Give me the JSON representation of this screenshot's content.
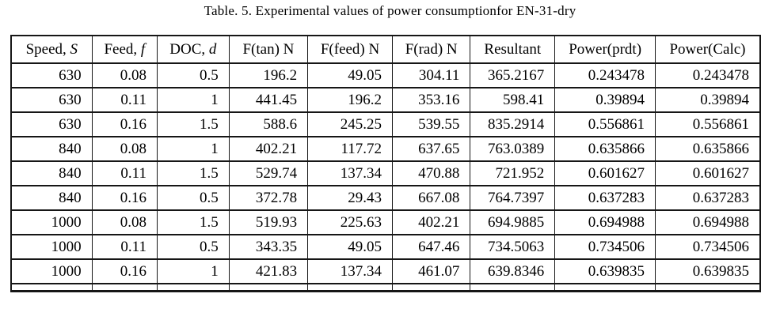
{
  "page": {
    "background": "#ffffff",
    "text_color": "#000000",
    "border_color": "#161616"
  },
  "title": "Table. 5. Experimental values of power consumptionfor EN-31-dry",
  "table": {
    "columns": [
      {
        "text": "Speed, ",
        "var": "S"
      },
      {
        "text": "Feed, ",
        "var": "f"
      },
      {
        "text": "DOC, ",
        "var": "d"
      },
      {
        "text": "F(tan) N",
        "var": ""
      },
      {
        "text": "F(feed) N",
        "var": ""
      },
      {
        "text": "F(rad) N",
        "var": ""
      },
      {
        "text": "Resultant",
        "var": ""
      },
      {
        "text": "Power(prdt)",
        "var": ""
      },
      {
        "text": "Power(Calc)",
        "var": ""
      }
    ],
    "rows": [
      [
        "630",
        "0.08",
        "0.5",
        "196.2",
        "49.05",
        "304.11",
        "365.2167",
        "0.243478",
        "0.243478"
      ],
      [
        "630",
        "0.11",
        "1",
        "441.45",
        "196.2",
        "353.16",
        "598.41",
        "0.39894",
        "0.39894"
      ],
      [
        "630",
        "0.16",
        "1.5",
        "588.6",
        "245.25",
        "539.55",
        "835.2914",
        "0.556861",
        "0.556861"
      ],
      [
        "840",
        "0.08",
        "1",
        "402.21",
        "117.72",
        "637.65",
        "763.0389",
        "0.635866",
        "0.635866"
      ],
      [
        "840",
        "0.11",
        "1.5",
        "529.74",
        "137.34",
        "470.88",
        "721.952",
        "0.601627",
        "0.601627"
      ],
      [
        "840",
        "0.16",
        "0.5",
        "372.78",
        "29.43",
        "667.08",
        "764.7397",
        "0.637283",
        "0.637283"
      ],
      [
        "1000",
        "0.08",
        "1.5",
        "519.93",
        "225.63",
        "402.21",
        "694.9885",
        "0.694988",
        "0.694988"
      ],
      [
        "1000",
        "0.11",
        "0.5",
        "343.35",
        "49.05",
        "647.46",
        "734.5063",
        "0.734506",
        "0.734506"
      ],
      [
        "1000",
        "0.16",
        "1",
        "421.83",
        "137.34",
        "461.07",
        "639.8346",
        "0.639835",
        "0.639835"
      ]
    ],
    "has_trailing_empty_row": true
  },
  "chart_data": {
    "type": "table",
    "title": "Table. 5. Experimental values of power consumptionfor EN-31-dry",
    "columns": [
      "Speed, S",
      "Feed, f",
      "DOC, d",
      "F(tan) N",
      "F(feed) N",
      "F(rad) N",
      "Resultant",
      "Power(prdt)",
      "Power(Calc)"
    ],
    "rows": [
      [
        630,
        0.08,
        0.5,
        196.2,
        49.05,
        304.11,
        365.2167,
        0.243478,
        0.243478
      ],
      [
        630,
        0.11,
        1,
        441.45,
        196.2,
        353.16,
        598.41,
        0.39894,
        0.39894
      ],
      [
        630,
        0.16,
        1.5,
        588.6,
        245.25,
        539.55,
        835.2914,
        0.556861,
        0.556861
      ],
      [
        840,
        0.08,
        1,
        402.21,
        117.72,
        637.65,
        763.0389,
        0.635866,
        0.635866
      ],
      [
        840,
        0.11,
        1.5,
        529.74,
        137.34,
        470.88,
        721.952,
        0.601627,
        0.601627
      ],
      [
        840,
        0.16,
        0.5,
        372.78,
        29.43,
        667.08,
        764.7397,
        0.637283,
        0.637283
      ],
      [
        1000,
        0.08,
        1.5,
        519.93,
        225.63,
        402.21,
        694.9885,
        0.694988,
        0.694988
      ],
      [
        1000,
        0.11,
        0.5,
        343.35,
        49.05,
        647.46,
        734.5063,
        0.734506,
        0.734506
      ],
      [
        1000,
        0.16,
        1,
        421.83,
        137.34,
        461.07,
        639.8346,
        0.639835,
        0.639835
      ]
    ]
  }
}
